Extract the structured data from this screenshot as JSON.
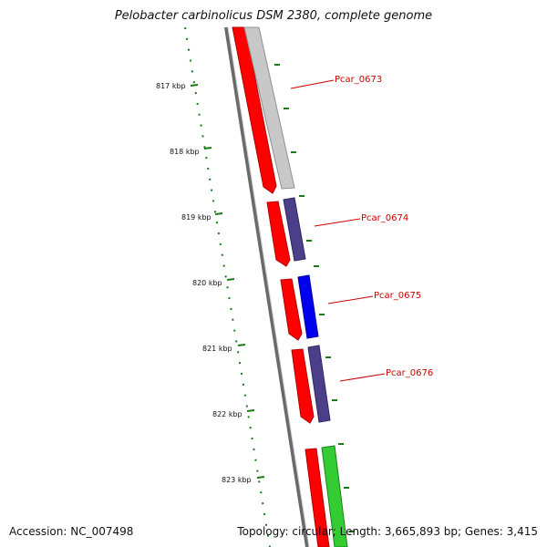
{
  "title": "Pelobacter carbinolicus DSM 2380, complete genome",
  "accession_label": "Accession: NC_007498",
  "topology_label": "Topology: circular; Length: 3,665,893 bp; Genes: 3,415",
  "kbp_ticks": [
    "817 kbp",
    "818 kbp",
    "819 kbp",
    "820 kbp",
    "821 kbp",
    "822 kbp",
    "823 kbp"
  ],
  "genes": [
    {
      "name": "Pcar_0673",
      "color": "#c8c8c8"
    },
    {
      "name": "Pcar_0674",
      "color": "#4b3f8a"
    },
    {
      "name": "Pcar_0675",
      "color": "#0000ee"
    },
    {
      "name": "Pcar_0676",
      "color": "#4b3f8a"
    },
    {
      "name": "",
      "color": "#33cc33"
    }
  ],
  "colors": {
    "cds_track": "#ff0000",
    "tick_color": "#1a7a1a",
    "backbone": "#808080",
    "label_color": "#cc0000"
  }
}
